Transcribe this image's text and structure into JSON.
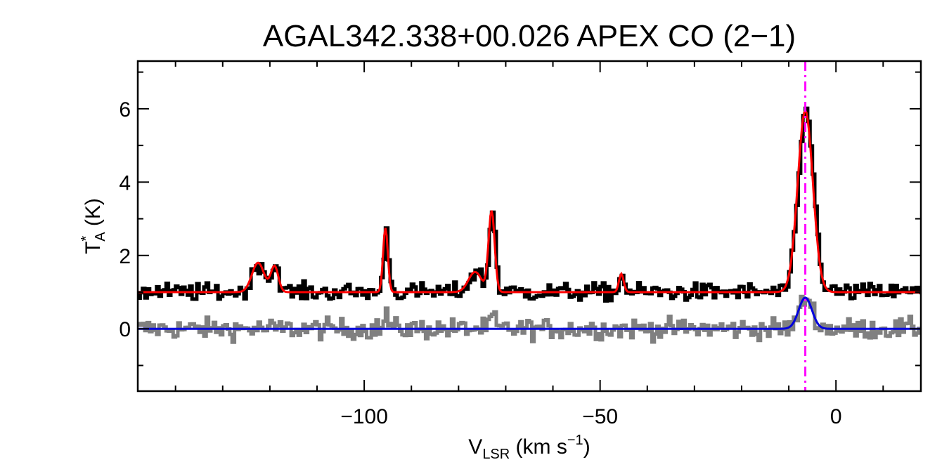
{
  "chart_data": {
    "type": "line",
    "title": "AGAL342.338+00.026  APEX CO (2−1)",
    "xlabel": {
      "main": "V",
      "sub": "LSR",
      "unit": " (km s",
      "exp": "−1",
      "close": ")"
    },
    "ylabel": {
      "main": "T",
      "sup": "*",
      "sub": "A",
      "unit": " (K)"
    },
    "xlim": [
      -148,
      18
    ],
    "ylim": [
      -1.7,
      7.3
    ],
    "x_ticks": [
      {
        "value": -100,
        "label": "−100"
      },
      {
        "value": -50,
        "label": "−50"
      },
      {
        "value": 0,
        "label": "0"
      }
    ],
    "y_ticks": [
      {
        "value": 0,
        "label": "0"
      },
      {
        "value": 2,
        "label": "2"
      },
      {
        "value": 4,
        "label": "4"
      },
      {
        "value": 6,
        "label": "6"
      }
    ],
    "x_minor_step": 10,
    "y_minor_step": 1,
    "vline": {
      "x": -6.5,
      "color": "#ff00ff",
      "style": "dash-dot"
    },
    "series": [
      {
        "role": "spectrum",
        "color": "#000000",
        "baseline": 1.0,
        "noise": 0.12,
        "components": [
          {
            "center": -122.5,
            "amp": 0.8,
            "sigma": 1.3
          },
          {
            "center": -119.0,
            "amp": 0.7,
            "sigma": 0.8
          },
          {
            "center": -95.5,
            "amp": 1.75,
            "sigma": 0.5
          },
          {
            "center": -76.5,
            "amp": 0.55,
            "sigma": 1.4
          },
          {
            "center": -73.0,
            "amp": 2.2,
            "sigma": 0.65
          },
          {
            "center": -45.5,
            "amp": 0.5,
            "sigma": 0.5
          },
          {
            "center": -6.5,
            "amp": 4.95,
            "sigma": 1.6
          }
        ]
      },
      {
        "role": "fit",
        "color": "#ff0000",
        "baseline": 1.0,
        "components": [
          {
            "center": -122.5,
            "amp": 0.8,
            "sigma": 1.3
          },
          {
            "center": -119.0,
            "amp": 0.7,
            "sigma": 0.8
          },
          {
            "center": -95.5,
            "amp": 1.75,
            "sigma": 0.5
          },
          {
            "center": -76.5,
            "amp": 0.55,
            "sigma": 1.4
          },
          {
            "center": -73.0,
            "amp": 2.2,
            "sigma": 0.65
          },
          {
            "center": -45.5,
            "amp": 0.5,
            "sigma": 0.5
          },
          {
            "center": -6.5,
            "amp": 4.95,
            "sigma": 1.6
          }
        ]
      },
      {
        "role": "residual",
        "color": "#808080",
        "baseline": 0.0,
        "noise": 0.14,
        "components": [
          {
            "center": -95.5,
            "amp": 0.45,
            "sigma": 0.4
          },
          {
            "center": -73.0,
            "amp": 0.35,
            "sigma": 0.5
          },
          {
            "center": -6.5,
            "amp": 0.85,
            "sigma": 1.4
          }
        ]
      },
      {
        "role": "residual-fit",
        "color": "#0000dd",
        "baseline": 0.0,
        "components": [
          {
            "center": -6.5,
            "amp": 0.85,
            "sigma": 1.4
          }
        ]
      }
    ]
  }
}
